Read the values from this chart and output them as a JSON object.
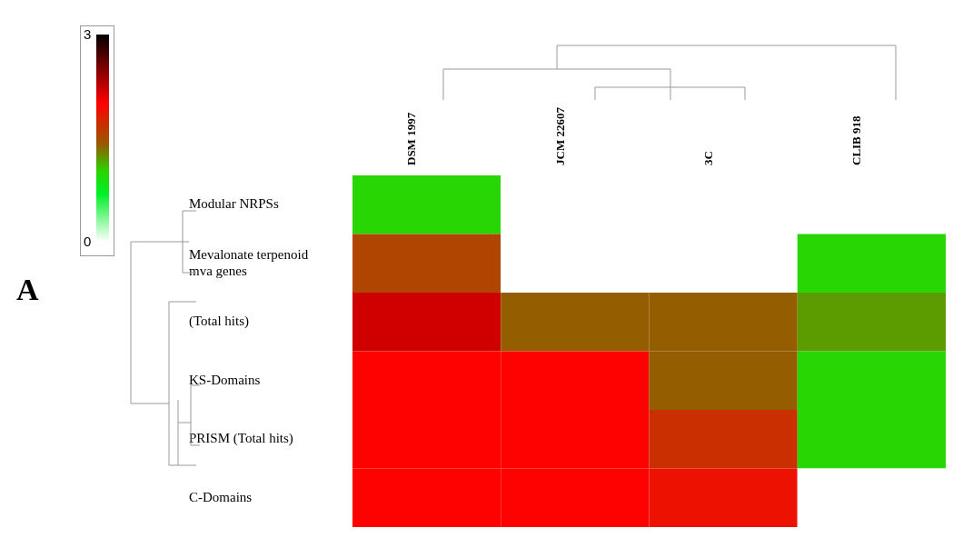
{
  "chart_data": {
    "type": "heatmap",
    "categories": [
      "DSM 1997",
      "JCM 22607",
      "3C",
      "CLIB 918"
    ],
    "y_categories": [
      "Modular NRPSs",
      "Mevalonate terpenoid mva genes",
      "(Total hits)",
      "KS-Domains",
      "PRISM (Total hits)",
      "C-Domains"
    ],
    "cells": [
      [
        1.0,
        0,
        0,
        0
      ],
      [
        1.55,
        0,
        0,
        1.0
      ],
      [
        2.2,
        1.4,
        1.4,
        1.2
      ],
      [
        2.0,
        2.0,
        1.4,
        1.0
      ],
      [
        2.0,
        2.0,
        1.7,
        1.0
      ],
      [
        2.0,
        2.0,
        1.9,
        0
      ]
    ],
    "clim": [
      0,
      3
    ],
    "cticks": [
      0,
      3
    ],
    "annotations": [
      "A"
    ]
  }
}
